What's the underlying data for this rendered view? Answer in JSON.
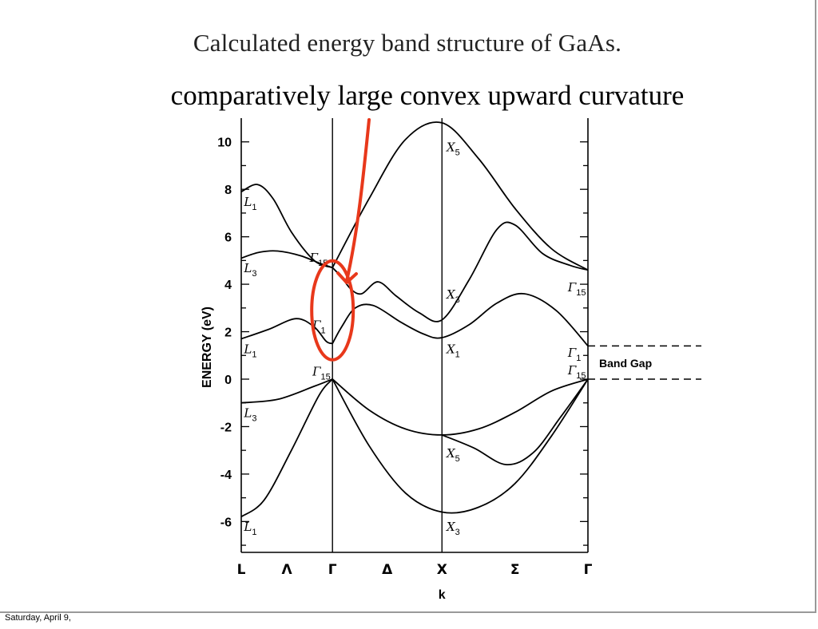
{
  "slide": {
    "title": "Calculated energy band structure of GaAs.",
    "annotation": "comparatively large convex upward curvature",
    "footer": "Saturday, April 9,"
  },
  "colors": {
    "line": "#000000",
    "highlight": "#e8381b"
  },
  "chart_data": {
    "type": "line",
    "title": "",
    "xlabel": "k",
    "ylabel": "ENERGY (eV)",
    "ylim": [
      -7.3,
      11
    ],
    "yticks": [
      "10",
      "8",
      "6",
      "4",
      "2",
      "0",
      "-2",
      "-4",
      "-6"
    ],
    "ytick_values": [
      10,
      8,
      6,
      4,
      2,
      0,
      -2,
      -4,
      -6
    ],
    "k_points": [
      "L",
      "Λ",
      "Γ",
      "Δ",
      "X",
      "Σ",
      "Γ"
    ],
    "k_positions": [
      0,
      0.5,
      1,
      1.6,
      2.2,
      3.0,
      3.8
    ],
    "symmetry_lines": [
      1,
      2.2
    ],
    "bands": [
      {
        "points": [
          [
            0,
            7.9
          ],
          [
            0.18,
            8.2
          ],
          [
            0.35,
            7.6
          ],
          [
            0.55,
            6.2
          ],
          [
            0.8,
            5.0
          ],
          [
            1,
            4.7
          ]
        ]
      },
      {
        "points": [
          [
            0,
            5.1
          ],
          [
            0.2,
            5.35
          ],
          [
            0.4,
            5.4
          ],
          [
            0.65,
            5.2
          ],
          [
            0.85,
            4.9
          ],
          [
            1,
            4.7
          ]
        ]
      },
      {
        "points": [
          [
            1,
            4.7
          ],
          [
            1.4,
            7.6
          ],
          [
            1.8,
            10.1
          ],
          [
            2.2,
            10.8
          ],
          [
            2.6,
            9.3
          ],
          [
            3.0,
            7.2
          ],
          [
            3.4,
            5.5
          ],
          [
            3.8,
            4.6
          ]
        ]
      },
      {
        "points": [
          [
            1,
            4.7
          ],
          [
            1.1,
            4.3
          ],
          [
            1.2,
            3.8
          ],
          [
            1.32,
            3.6
          ],
          [
            1.5,
            4.1
          ],
          [
            1.7,
            3.5
          ],
          [
            1.95,
            2.8
          ],
          [
            2.2,
            2.5
          ],
          [
            2.5,
            4.2
          ],
          [
            2.8,
            6.3
          ],
          [
            3.0,
            6.5
          ],
          [
            3.3,
            5.3
          ],
          [
            3.6,
            4.8
          ],
          [
            3.8,
            4.6
          ]
        ]
      },
      {
        "points": [
          [
            1,
            1.5
          ],
          [
            1.1,
            2.2
          ],
          [
            1.25,
            3.0
          ],
          [
            1.45,
            3.1
          ],
          [
            1.75,
            2.4
          ],
          [
            2.0,
            1.9
          ],
          [
            2.2,
            1.75
          ],
          [
            2.5,
            2.3
          ],
          [
            2.8,
            3.2
          ],
          [
            3.1,
            3.6
          ],
          [
            3.45,
            2.9
          ],
          [
            3.8,
            1.4
          ]
        ]
      },
      {
        "points": [
          [
            0,
            1.7
          ],
          [
            0.3,
            2.1
          ],
          [
            0.6,
            2.55
          ],
          [
            0.8,
            2.2
          ],
          [
            0.93,
            1.6
          ],
          [
            1,
            1.5
          ]
        ]
      },
      {
        "points": [
          [
            0,
            -1.0
          ],
          [
            0.4,
            -0.85
          ],
          [
            0.8,
            -0.3
          ],
          [
            1,
            0
          ]
        ]
      },
      {
        "points": [
          [
            0,
            -5.8
          ],
          [
            0.25,
            -5.1
          ],
          [
            0.55,
            -3.0
          ],
          [
            0.85,
            -0.7
          ],
          [
            1,
            0
          ]
        ]
      },
      {
        "points": [
          [
            1,
            0
          ],
          [
            1.4,
            -1.3
          ],
          [
            1.8,
            -2.1
          ],
          [
            2.2,
            -2.35
          ],
          [
            2.6,
            -2.1
          ],
          [
            3.0,
            -1.4
          ],
          [
            3.4,
            -0.5
          ],
          [
            3.8,
            0
          ]
        ]
      },
      {
        "points": [
          [
            1,
            0
          ],
          [
            1.4,
            -2.8
          ],
          [
            1.8,
            -4.8
          ],
          [
            2.2,
            -5.6
          ],
          [
            2.6,
            -5.4
          ],
          [
            3.0,
            -4.4
          ],
          [
            3.4,
            -2.4
          ],
          [
            3.8,
            0
          ]
        ]
      },
      {
        "points": [
          [
            2.2,
            -2.35
          ],
          [
            2.55,
            -2.9
          ],
          [
            2.9,
            -3.6
          ],
          [
            3.2,
            -3.1
          ],
          [
            3.5,
            -1.6
          ],
          [
            3.8,
            0
          ]
        ]
      }
    ],
    "point_labels": [
      {
        "name": "L",
        "sub": "1",
        "x": 0.03,
        "y": 7.3
      },
      {
        "name": "L",
        "sub": "3",
        "x": 0.03,
        "y": 4.5
      },
      {
        "name": "L",
        "sub": "1",
        "x": 0.03,
        "y": 1.1
      },
      {
        "name": "L",
        "sub": "3",
        "x": 0.03,
        "y": -1.6
      },
      {
        "name": "L",
        "sub": "1",
        "x": 0.03,
        "y": -6.4
      },
      {
        "name": "Γ",
        "sub": "15",
        "x": 0.75,
        "y": 4.95
      },
      {
        "name": "Γ",
        "sub": "1",
        "x": 0.78,
        "y": 2.1
      },
      {
        "name": "Γ",
        "sub": "15",
        "x": 0.78,
        "y": 0.15
      },
      {
        "name": "X",
        "sub": "5",
        "x": 2.25,
        "y": 9.6
      },
      {
        "name": "X",
        "sub": "3",
        "x": 2.25,
        "y": 3.4
      },
      {
        "name": "X",
        "sub": "1",
        "x": 2.25,
        "y": 1.1
      },
      {
        "name": "X",
        "sub": "5",
        "x": 2.25,
        "y": -3.3
      },
      {
        "name": "X",
        "sub": "3",
        "x": 2.25,
        "y": -6.4
      },
      {
        "name": "Γ",
        "sub": "15",
        "x": 3.58,
        "y": 3.7
      },
      {
        "name": "Γ",
        "sub": "1",
        "x": 3.58,
        "y": 0.95
      },
      {
        "name": "Γ",
        "sub": "15",
        "x": 3.58,
        "y": 0.2
      }
    ],
    "band_gap": {
      "label": "Band Gap",
      "conduction_min": 1.4,
      "valence_max": 0
    }
  }
}
